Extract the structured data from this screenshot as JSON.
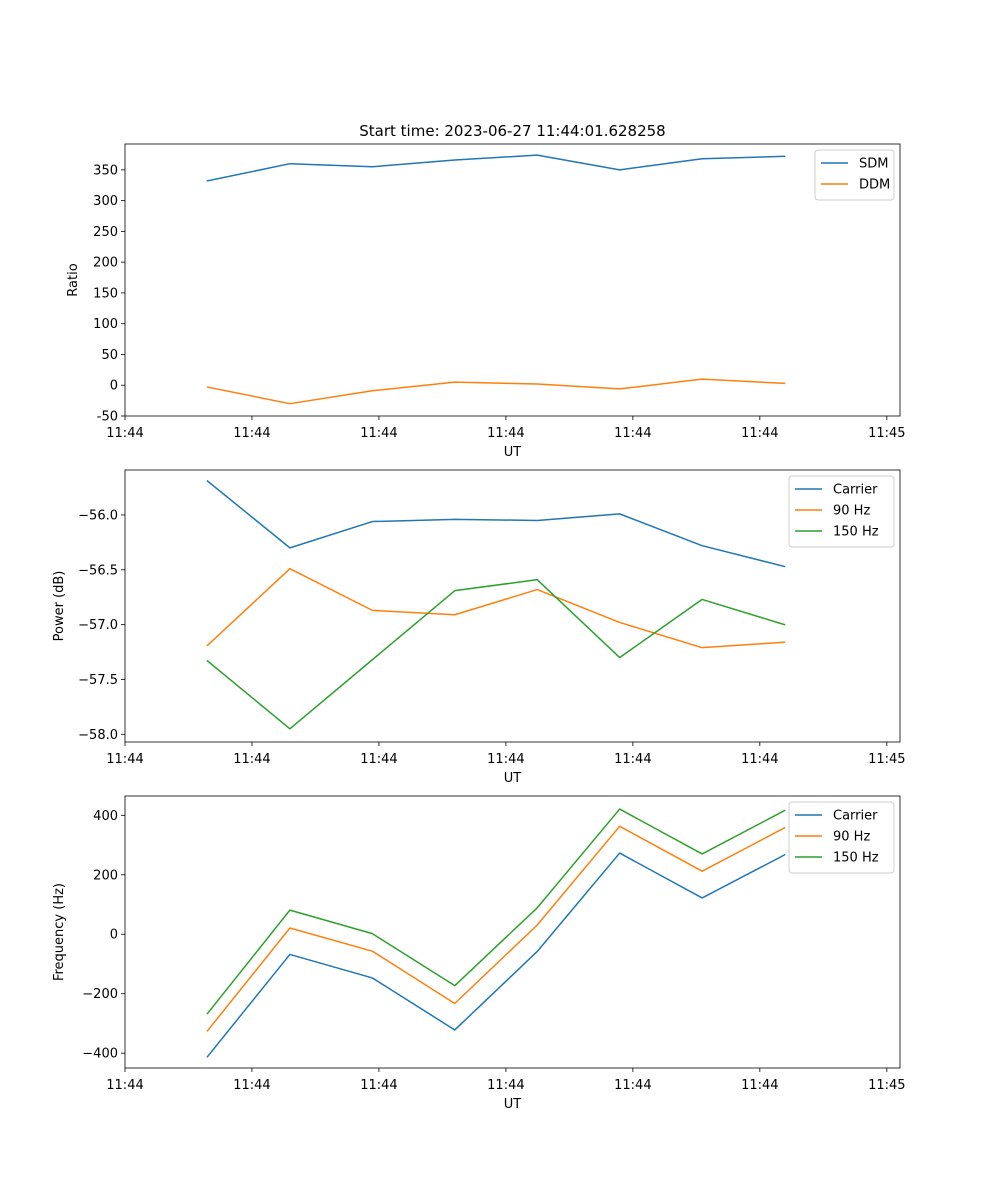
{
  "figure": {
    "title": "Start time: 2023-06-27 11:44:01.628258"
  },
  "chart_data": [
    {
      "type": "line",
      "title": "Start time: 2023-06-27 11:44:01.628258",
      "xlabel": "UT",
      "ylabel": "Ratio",
      "xlim": [
        0,
        9.4
      ],
      "ylim": [
        -50,
        392
      ],
      "x": [
        1,
        2,
        3,
        4,
        5,
        6,
        7,
        8
      ],
      "x_tick_values": [
        0,
        1.54,
        3.08,
        4.62,
        6.16,
        7.7,
        9.24
      ],
      "x_tick_labels": [
        "11:44",
        "11:44",
        "11:44",
        "11:44",
        "11:44",
        "11:44",
        "11:45"
      ],
      "y_ticks": [
        -50,
        0,
        50,
        100,
        150,
        200,
        250,
        300,
        350
      ],
      "grid": false,
      "legend_position": "top-right",
      "series": [
        {
          "name": "SDM",
          "color": "#1f77b4",
          "values": [
            332,
            360,
            355,
            366,
            374,
            350,
            368,
            372
          ]
        },
        {
          "name": "DDM",
          "color": "#ff7f0e",
          "values": [
            -3,
            -30,
            -9,
            5,
            2,
            -6,
            10,
            3
          ]
        }
      ]
    },
    {
      "type": "line",
      "title": "",
      "xlabel": "UT",
      "ylabel": "Power (dB)",
      "xlim": [
        0,
        9.4
      ],
      "ylim": [
        -58.07,
        -55.59
      ],
      "x": [
        1,
        2,
        3,
        4,
        5,
        6,
        7,
        8
      ],
      "x_tick_values": [
        0,
        1.54,
        3.08,
        4.62,
        6.16,
        7.7,
        9.24
      ],
      "x_tick_labels": [
        "11:44",
        "11:44",
        "11:44",
        "11:44",
        "11:44",
        "11:44",
        "11:45"
      ],
      "y_ticks": [
        -58.0,
        -57.5,
        -57.0,
        -56.5,
        -56.0
      ],
      "y_tick_labels": [
        "−58.0",
        "−57.5",
        "−57.0",
        "−56.5",
        "−56.0"
      ],
      "grid": false,
      "legend_position": "top-right",
      "series": [
        {
          "name": "Carrier",
          "color": "#1f77b4",
          "values": [
            -55.69,
            -56.3,
            -56.06,
            -56.04,
            -56.05,
            -55.99,
            -56.28,
            -56.47
          ]
        },
        {
          "name": "90 Hz",
          "color": "#ff7f0e",
          "values": [
            -57.19,
            -56.49,
            -56.87,
            -56.91,
            -56.68,
            -56.98,
            -57.21,
            -57.16
          ]
        },
        {
          "name": "150 Hz",
          "color": "#2ca02c",
          "values": [
            -57.33,
            -57.95,
            -57.32,
            -56.69,
            -56.59,
            -57.3,
            -56.77,
            -57.0
          ]
        }
      ]
    },
    {
      "type": "line",
      "title": "",
      "xlabel": "UT",
      "ylabel": "Frequency (Hz)",
      "xlim": [
        0,
        9.4
      ],
      "ylim": [
        -450,
        465
      ],
      "x": [
        1,
        2,
        3,
        4,
        5,
        6,
        7,
        8
      ],
      "x_tick_values": [
        0,
        1.54,
        3.08,
        4.62,
        6.16,
        7.7,
        9.24
      ],
      "x_tick_labels": [
        "11:44",
        "11:44",
        "11:44",
        "11:44",
        "11:44",
        "11:44",
        "11:45"
      ],
      "y_ticks": [
        -400,
        -200,
        0,
        200,
        400
      ],
      "y_tick_labels": [
        "−400",
        "−200",
        "0",
        "200",
        "400"
      ],
      "grid": false,
      "legend_position": "top-right",
      "series": [
        {
          "name": "Carrier",
          "color": "#1f77b4",
          "values": [
            -412,
            -68,
            -147,
            -322,
            -58,
            273,
            122,
            267
          ]
        },
        {
          "name": "90 Hz",
          "color": "#ff7f0e",
          "values": [
            -325,
            21,
            -57,
            -233,
            31,
            363,
            212,
            358
          ]
        },
        {
          "name": "150 Hz",
          "color": "#2ca02c",
          "values": [
            -267,
            81,
            2,
            -173,
            89,
            421,
            270,
            416
          ]
        }
      ]
    }
  ]
}
